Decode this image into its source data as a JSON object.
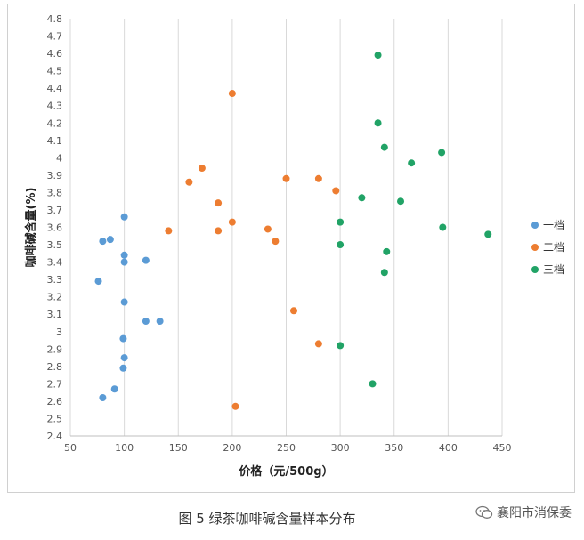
{
  "chart_data": {
    "type": "scatter",
    "xlabel": "价格（元/500g）",
    "ylabel": "咖啡碱含量(%)",
    "xlim": [
      50,
      450
    ],
    "ylim": [
      2.4,
      4.8
    ],
    "x_ticks": [
      50,
      100,
      150,
      200,
      250,
      300,
      350,
      400,
      450
    ],
    "y_ticks": [
      2.4,
      2.5,
      2.6,
      2.7,
      2.8,
      2.9,
      3,
      3.1,
      3.2,
      3.3,
      3.4,
      3.5,
      3.6,
      3.7,
      3.8,
      3.9,
      4,
      4.1,
      4.2,
      4.3,
      4.4,
      4.5,
      4.6,
      4.7,
      4.8
    ],
    "grid": "vertical",
    "legend_position": "right",
    "series": [
      {
        "name": "一档",
        "color": "#5B9BD5",
        "points": [
          [
            100,
            3.66
          ],
          [
            80,
            3.52
          ],
          [
            87,
            3.53
          ],
          [
            100,
            3.44
          ],
          [
            100,
            3.4
          ],
          [
            120,
            3.41
          ],
          [
            76,
            3.29
          ],
          [
            100,
            3.17
          ],
          [
            120,
            3.06
          ],
          [
            133,
            3.06
          ],
          [
            99,
            2.96
          ],
          [
            100,
            2.85
          ],
          [
            99,
            2.79
          ],
          [
            91,
            2.67
          ],
          [
            80,
            2.62
          ]
        ]
      },
      {
        "name": "二档",
        "color": "#ED7D31",
        "points": [
          [
            200,
            4.37
          ],
          [
            172,
            3.94
          ],
          [
            160,
            3.86
          ],
          [
            187,
            3.74
          ],
          [
            250,
            3.88
          ],
          [
            280,
            3.88
          ],
          [
            296,
            3.81
          ],
          [
            200,
            3.63
          ],
          [
            141,
            3.58
          ],
          [
            187,
            3.58
          ],
          [
            233,
            3.59
          ],
          [
            240,
            3.52
          ],
          [
            257,
            3.12
          ],
          [
            280,
            2.93
          ],
          [
            203,
            2.57
          ]
        ]
      },
      {
        "name": "三档",
        "color": "#21A366",
        "points": [
          [
            335,
            4.59
          ],
          [
            335,
            4.2
          ],
          [
            341,
            4.06
          ],
          [
            366,
            3.97
          ],
          [
            394,
            4.03
          ],
          [
            320,
            3.77
          ],
          [
            356,
            3.75
          ],
          [
            300,
            3.63
          ],
          [
            395,
            3.6
          ],
          [
            437,
            3.56
          ],
          [
            300,
            3.5
          ],
          [
            343,
            3.46
          ],
          [
            341,
            3.34
          ],
          [
            300,
            2.92
          ],
          [
            330,
            2.7
          ]
        ]
      }
    ]
  },
  "caption": "图 5  绿茶咖啡碱含量样本分布",
  "watermark": {
    "text": "襄阳市消保委",
    "icon": "wechat-icon"
  }
}
